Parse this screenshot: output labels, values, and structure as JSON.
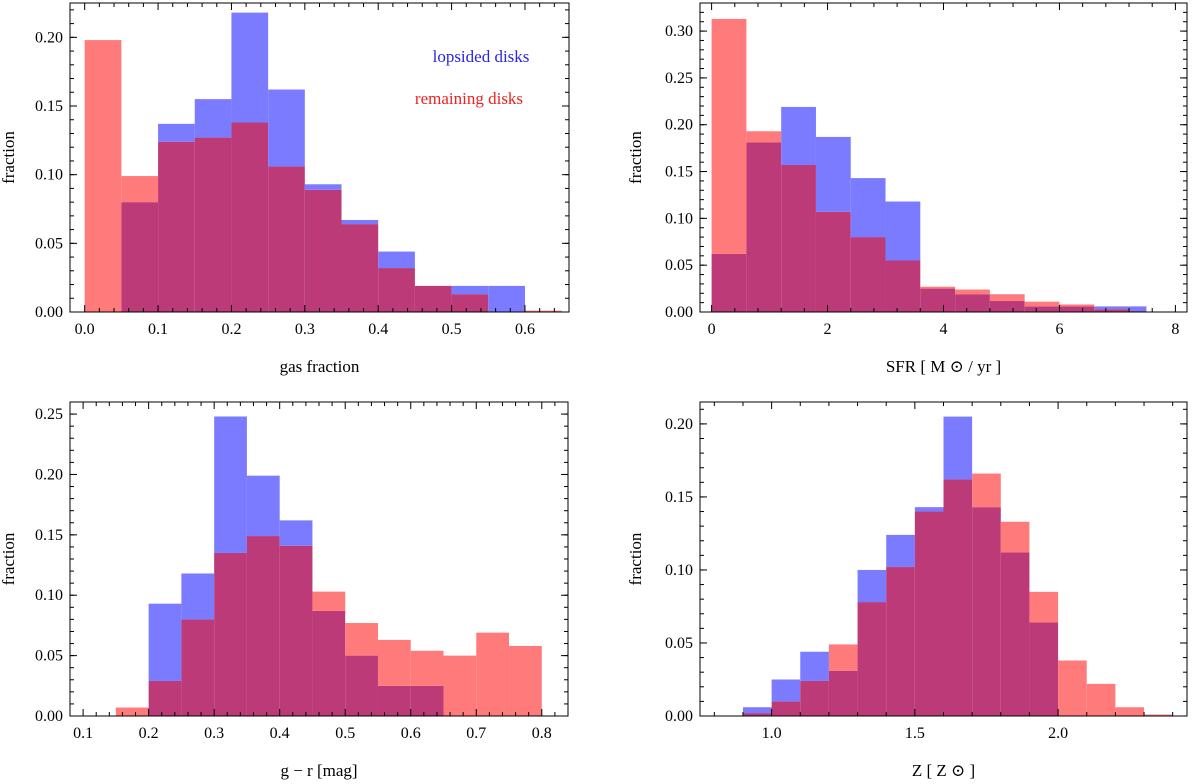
{
  "figure": {
    "legend": {
      "lopsided": "lopsided disks",
      "remaining": "remaining disks",
      "placement": "top-right"
    },
    "colors": {
      "lopsided": "#7b7bff",
      "remaining": "#ff7b7b",
      "overlap": "#bc3a78",
      "lopsided_text": "#2626e6",
      "remaining_text": "#ee2222",
      "axis": "#000000"
    }
  },
  "chart_data": [
    {
      "type": "bar",
      "histogram": true,
      "xlabel": "gas fraction",
      "ylabel": "fraction",
      "xlim": [
        -0.02,
        0.66
      ],
      "ylim": [
        0,
        0.225
      ],
      "xticks": [
        0.0,
        0.1,
        0.2,
        0.3,
        0.4,
        0.5,
        0.6
      ],
      "xtick_labels": [
        "0.0",
        "0.1",
        "0.2",
        "0.3",
        "0.4",
        "0.5",
        "0.6"
      ],
      "yticks": [
        0,
        0.05,
        0.1,
        0.15,
        0.2
      ],
      "ytick_labels": [
        "0.00",
        "0.05",
        "0.10",
        "0.15",
        "0.20"
      ],
      "bin_edges": [
        0.0,
        0.05,
        0.1,
        0.15,
        0.2,
        0.25,
        0.3,
        0.35,
        0.4,
        0.45,
        0.5,
        0.55,
        0.6,
        0.65
      ],
      "series": [
        {
          "name": "lopsided disks",
          "values": [
            0.0,
            0.08,
            0.137,
            0.155,
            0.218,
            0.162,
            0.093,
            0.067,
            0.044,
            0.019,
            0.019,
            0.019,
            0.0
          ]
        },
        {
          "name": "remaining disks",
          "values": [
            0.198,
            0.099,
            0.124,
            0.127,
            0.138,
            0.106,
            0.089,
            0.064,
            0.032,
            0.019,
            0.013,
            0.0,
            0.001
          ]
        }
      ],
      "show_legend": true
    },
    {
      "type": "bar",
      "histogram": true,
      "xlabel": "SFR [ M ⊙ / yr ]",
      "ylabel": "fraction",
      "xlim": [
        -0.2,
        8.2
      ],
      "ylim": [
        0,
        0.33
      ],
      "xticks": [
        0,
        2,
        4,
        6,
        8
      ],
      "xtick_labels": [
        "0",
        "2",
        "4",
        "6",
        "8"
      ],
      "yticks": [
        0,
        0.05,
        0.1,
        0.15,
        0.2,
        0.25,
        0.3
      ],
      "ytick_labels": [
        "0.00",
        "0.05",
        "0.10",
        "0.15",
        "0.20",
        "0.25",
        "0.30"
      ],
      "bin_edges": [
        0.0,
        0.6,
        1.2,
        1.8,
        2.4,
        3.0,
        3.6,
        4.2,
        4.8,
        5.4,
        6.0,
        6.6,
        7.2,
        7.5
      ],
      "series": [
        {
          "name": "lopsided disks",
          "values": [
            0.062,
            0.181,
            0.219,
            0.187,
            0.143,
            0.118,
            0.025,
            0.019,
            0.012,
            0.006,
            0.006,
            0.006,
            0.006
          ]
        },
        {
          "name": "remaining disks",
          "values": [
            0.313,
            0.193,
            0.157,
            0.107,
            0.08,
            0.055,
            0.027,
            0.024,
            0.019,
            0.011,
            0.008,
            0.003,
            0.001
          ]
        }
      ],
      "show_legend": false
    },
    {
      "type": "bar",
      "histogram": true,
      "xlabel": "g − r [mag]",
      "ylabel": "fraction",
      "xlim": [
        0.08,
        0.84
      ],
      "ylim": [
        0,
        0.26
      ],
      "xticks": [
        0.1,
        0.2,
        0.3,
        0.4,
        0.5,
        0.6,
        0.7,
        0.8
      ],
      "xtick_labels": [
        "0.1",
        "0.2",
        "0.3",
        "0.4",
        "0.5",
        "0.6",
        "0.7",
        "0.8"
      ],
      "yticks": [
        0,
        0.05,
        0.1,
        0.15,
        0.2,
        0.25
      ],
      "ytick_labels": [
        "0.00",
        "0.05",
        "0.10",
        "0.15",
        "0.20",
        "0.25"
      ],
      "bin_edges": [
        0.15,
        0.2,
        0.25,
        0.3,
        0.35,
        0.4,
        0.45,
        0.5,
        0.55,
        0.6,
        0.65,
        0.7,
        0.75,
        0.8
      ],
      "series": [
        {
          "name": "lopsided disks",
          "values": [
            0.0,
            0.093,
            0.118,
            0.248,
            0.199,
            0.162,
            0.087,
            0.05,
            0.025,
            0.025,
            0.0,
            0.0,
            0.0
          ]
        },
        {
          "name": "remaining disks",
          "values": [
            0.007,
            0.029,
            0.08,
            0.135,
            0.149,
            0.141,
            0.103,
            0.077,
            0.063,
            0.054,
            0.05,
            0.069,
            0.058
          ]
        }
      ],
      "show_legend": false
    },
    {
      "type": "bar",
      "histogram": true,
      "xlabel": "Z [ Z ⊙ ]",
      "ylabel": "fraction",
      "xlim": [
        0.75,
        2.45
      ],
      "ylim": [
        0,
        0.215
      ],
      "xticks": [
        1.0,
        1.5,
        2.0
      ],
      "xtick_labels": [
        "1.0",
        "1.5",
        "2.0"
      ],
      "yticks": [
        0,
        0.05,
        0.1,
        0.15,
        0.2
      ],
      "ytick_labels": [
        "0.00",
        "0.05",
        "0.10",
        "0.15",
        "0.20"
      ],
      "bin_edges": [
        0.9,
        1.0,
        1.1,
        1.2,
        1.3,
        1.4,
        1.5,
        1.6,
        1.7,
        1.8,
        1.9,
        2.0,
        2.1,
        2.2,
        2.3,
        2.4
      ],
      "series": [
        {
          "name": "lopsided disks",
          "values": [
            0.006,
            0.025,
            0.044,
            0.031,
            0.1,
            0.124,
            0.143,
            0.205,
            0.143,
            0.112,
            0.064,
            0.0,
            0.0,
            0.0,
            0.0
          ]
        },
        {
          "name": "remaining disks",
          "values": [
            0.002,
            0.01,
            0.024,
            0.049,
            0.078,
            0.102,
            0.14,
            0.162,
            0.166,
            0.133,
            0.085,
            0.038,
            0.022,
            0.006,
            0.001
          ]
        }
      ],
      "show_legend": false
    }
  ]
}
